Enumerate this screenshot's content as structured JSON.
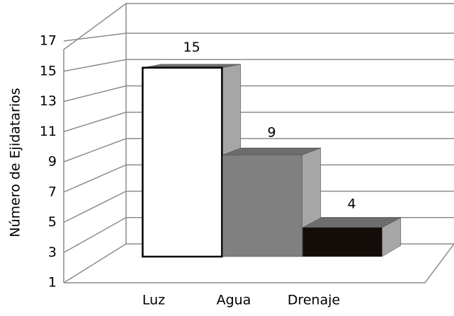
{
  "chart_data": {
    "type": "bar3d",
    "y_label": "Número de Ejidatarios",
    "categories": [
      "Luz",
      "Agua",
      "Drenaje"
    ],
    "values": [
      15,
      9,
      4
    ],
    "colors": [
      "#ffffff",
      "#808080",
      "#140c08"
    ],
    "ylim": [
      1,
      17
    ],
    "yticks": [
      1,
      3,
      5,
      7,
      9,
      11,
      13,
      15,
      17
    ],
    "grid": true
  }
}
